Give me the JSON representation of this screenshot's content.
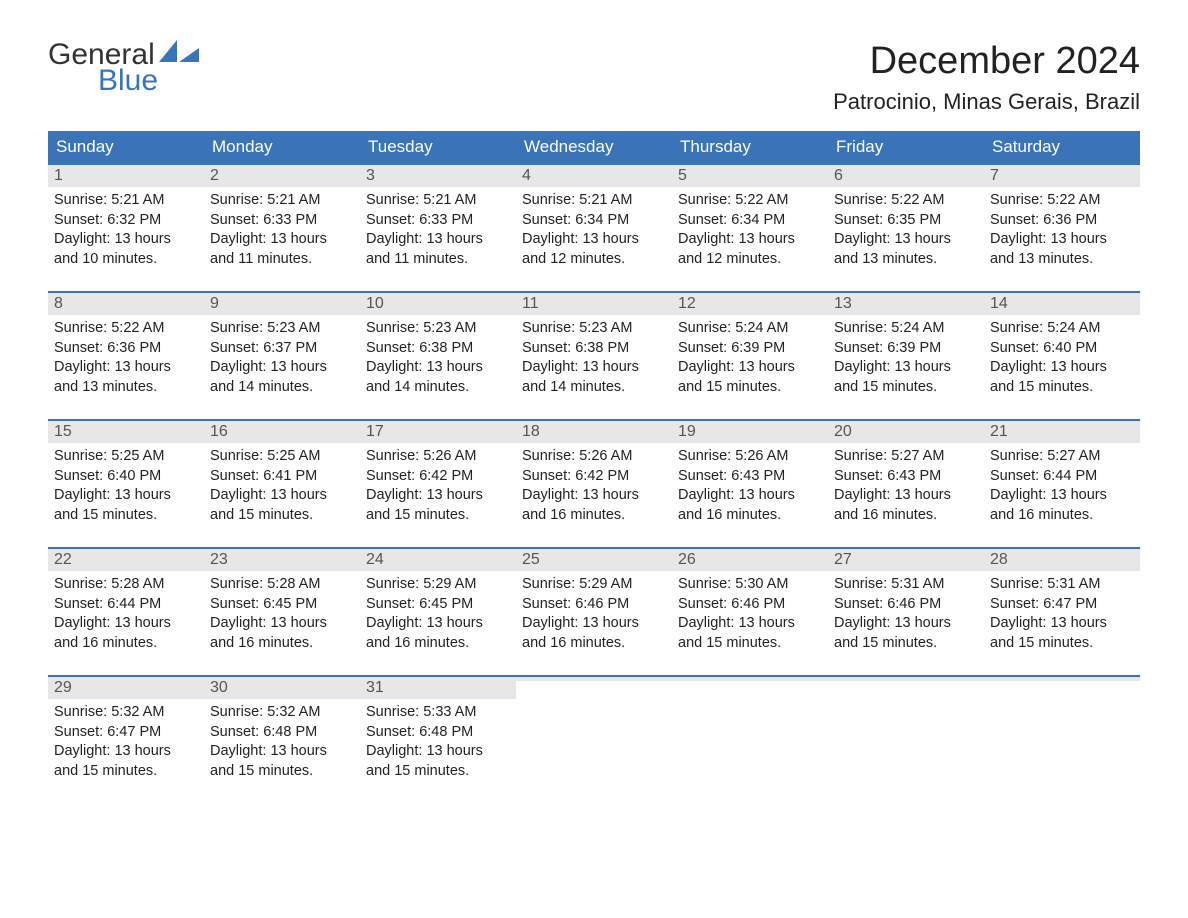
{
  "logo": {
    "text_top": "General",
    "text_bottom": "Blue",
    "sail_color": "#3b73b9"
  },
  "title": "December 2024",
  "location": "Patrocinio, Minas Gerais, Brazil",
  "colors": {
    "header_bg": "#3b73b9",
    "header_text": "#ffffff",
    "daynum_bg": "#e7e7e7",
    "daynum_text": "#555555",
    "body_text": "#222222",
    "rule": "#3b73b9",
    "page_bg": "#ffffff"
  },
  "day_headers": [
    "Sunday",
    "Monday",
    "Tuesday",
    "Wednesday",
    "Thursday",
    "Friday",
    "Saturday"
  ],
  "weeks": [
    [
      {
        "n": "1",
        "sunrise": "5:21 AM",
        "sunset": "6:32 PM",
        "dl": "13 hours and 10 minutes."
      },
      {
        "n": "2",
        "sunrise": "5:21 AM",
        "sunset": "6:33 PM",
        "dl": "13 hours and 11 minutes."
      },
      {
        "n": "3",
        "sunrise": "5:21 AM",
        "sunset": "6:33 PM",
        "dl": "13 hours and 11 minutes."
      },
      {
        "n": "4",
        "sunrise": "5:21 AM",
        "sunset": "6:34 PM",
        "dl": "13 hours and 12 minutes."
      },
      {
        "n": "5",
        "sunrise": "5:22 AM",
        "sunset": "6:34 PM",
        "dl": "13 hours and 12 minutes."
      },
      {
        "n": "6",
        "sunrise": "5:22 AM",
        "sunset": "6:35 PM",
        "dl": "13 hours and 13 minutes."
      },
      {
        "n": "7",
        "sunrise": "5:22 AM",
        "sunset": "6:36 PM",
        "dl": "13 hours and 13 minutes."
      }
    ],
    [
      {
        "n": "8",
        "sunrise": "5:22 AM",
        "sunset": "6:36 PM",
        "dl": "13 hours and 13 minutes."
      },
      {
        "n": "9",
        "sunrise": "5:23 AM",
        "sunset": "6:37 PM",
        "dl": "13 hours and 14 minutes."
      },
      {
        "n": "10",
        "sunrise": "5:23 AM",
        "sunset": "6:38 PM",
        "dl": "13 hours and 14 minutes."
      },
      {
        "n": "11",
        "sunrise": "5:23 AM",
        "sunset": "6:38 PM",
        "dl": "13 hours and 14 minutes."
      },
      {
        "n": "12",
        "sunrise": "5:24 AM",
        "sunset": "6:39 PM",
        "dl": "13 hours and 15 minutes."
      },
      {
        "n": "13",
        "sunrise": "5:24 AM",
        "sunset": "6:39 PM",
        "dl": "13 hours and 15 minutes."
      },
      {
        "n": "14",
        "sunrise": "5:24 AM",
        "sunset": "6:40 PM",
        "dl": "13 hours and 15 minutes."
      }
    ],
    [
      {
        "n": "15",
        "sunrise": "5:25 AM",
        "sunset": "6:40 PM",
        "dl": "13 hours and 15 minutes."
      },
      {
        "n": "16",
        "sunrise": "5:25 AM",
        "sunset": "6:41 PM",
        "dl": "13 hours and 15 minutes."
      },
      {
        "n": "17",
        "sunrise": "5:26 AM",
        "sunset": "6:42 PM",
        "dl": "13 hours and 15 minutes."
      },
      {
        "n": "18",
        "sunrise": "5:26 AM",
        "sunset": "6:42 PM",
        "dl": "13 hours and 16 minutes."
      },
      {
        "n": "19",
        "sunrise": "5:26 AM",
        "sunset": "6:43 PM",
        "dl": "13 hours and 16 minutes."
      },
      {
        "n": "20",
        "sunrise": "5:27 AM",
        "sunset": "6:43 PM",
        "dl": "13 hours and 16 minutes."
      },
      {
        "n": "21",
        "sunrise": "5:27 AM",
        "sunset": "6:44 PM",
        "dl": "13 hours and 16 minutes."
      }
    ],
    [
      {
        "n": "22",
        "sunrise": "5:28 AM",
        "sunset": "6:44 PM",
        "dl": "13 hours and 16 minutes."
      },
      {
        "n": "23",
        "sunrise": "5:28 AM",
        "sunset": "6:45 PM",
        "dl": "13 hours and 16 minutes."
      },
      {
        "n": "24",
        "sunrise": "5:29 AM",
        "sunset": "6:45 PM",
        "dl": "13 hours and 16 minutes."
      },
      {
        "n": "25",
        "sunrise": "5:29 AM",
        "sunset": "6:46 PM",
        "dl": "13 hours and 16 minutes."
      },
      {
        "n": "26",
        "sunrise": "5:30 AM",
        "sunset": "6:46 PM",
        "dl": "13 hours and 15 minutes."
      },
      {
        "n": "27",
        "sunrise": "5:31 AM",
        "sunset": "6:46 PM",
        "dl": "13 hours and 15 minutes."
      },
      {
        "n": "28",
        "sunrise": "5:31 AM",
        "sunset": "6:47 PM",
        "dl": "13 hours and 15 minutes."
      }
    ],
    [
      {
        "n": "29",
        "sunrise": "5:32 AM",
        "sunset": "6:47 PM",
        "dl": "13 hours and 15 minutes."
      },
      {
        "n": "30",
        "sunrise": "5:32 AM",
        "sunset": "6:48 PM",
        "dl": "13 hours and 15 minutes."
      },
      {
        "n": "31",
        "sunrise": "5:33 AM",
        "sunset": "6:48 PM",
        "dl": "13 hours and 15 minutes."
      },
      {
        "empty": true
      },
      {
        "empty": true
      },
      {
        "empty": true
      },
      {
        "empty": true
      }
    ]
  ],
  "labels": {
    "sunrise": "Sunrise:",
    "sunset": "Sunset:",
    "daylight": "Daylight:"
  }
}
